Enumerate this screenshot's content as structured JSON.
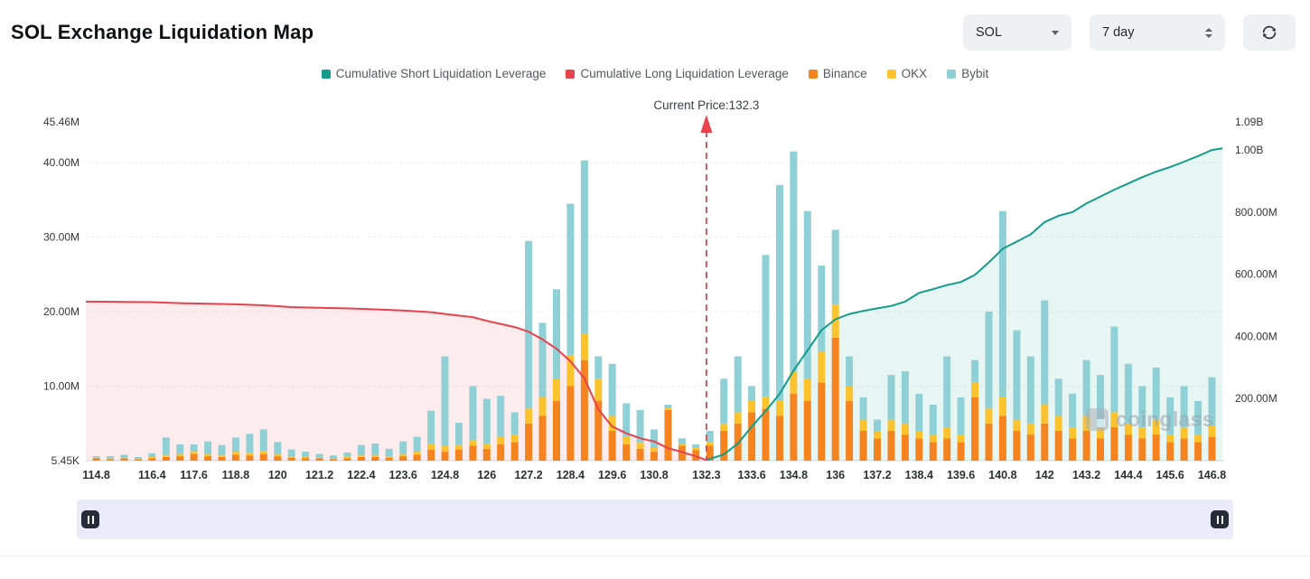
{
  "header": {
    "title": "SOL Exchange Liquidation Map"
  },
  "controls": {
    "symbol": "SOL",
    "timeframe": "7 day",
    "symbol_dropdown_icon": "chevron-down-icon",
    "timeframe_stepper_icon": "up-down-stepper-icon",
    "refresh_icon": "refresh-icon"
  },
  "legend": [
    {
      "label": "Cumulative Short Liquidation Leverage",
      "color": "#129c8c"
    },
    {
      "label": "Cumulative Long Liquidation Leverage",
      "color": "#e8424c"
    },
    {
      "label": "Binance",
      "color": "#f5831f"
    },
    {
      "label": "OKX",
      "color": "#fdc32e"
    },
    {
      "label": "Bybit",
      "color": "#8fd0d6"
    }
  ],
  "annotation": {
    "current_price_label": "Current Price:132.3",
    "current_price": 132.3
  },
  "watermark": "coinglass",
  "slider": {
    "left_handle_icon": "pause-icon",
    "right_handle_icon": "pause-icon"
  },
  "colors": {
    "short": "#129c8c",
    "long": "#e8424c",
    "binance": "#f5831f",
    "okx": "#fdc32e",
    "bybit": "#8fd0d6",
    "short_fill": "rgba(18,156,140,0.10)",
    "long_fill": "rgba(232,66,76,0.10)",
    "slider_track": "#e9ecf8",
    "slider_handle": "#262b38"
  },
  "chart_data": {
    "type": "bar",
    "title": "SOL Exchange Liquidation Map",
    "x_axis": "price",
    "x_range": [
      114.5,
      147.15
    ],
    "x_ticks": [
      "114.8",
      "116.4",
      "117.6",
      "118.8",
      "120",
      "121.2",
      "122.4",
      "123.6",
      "124.8",
      "126",
      "127.2",
      "128.4",
      "129.6",
      "130.8",
      "132.3",
      "133.6",
      "134.8",
      "136",
      "137.2",
      "138.4",
      "139.6",
      "140.8",
      "142",
      "143.2",
      "144.4",
      "145.6",
      "146.8"
    ],
    "left_axis": {
      "ticks": [
        "45.46M",
        "40.00M",
        "30.00M",
        "20.00M",
        "10.00M",
        "5.45K"
      ],
      "values_m": [
        45.46,
        40,
        30,
        20,
        10,
        0
      ],
      "max_m": 45.46
    },
    "right_axis": {
      "ticks": [
        "1.09B",
        "1.00B",
        "800.00M",
        "600.00M",
        "400.00M",
        "200.00M"
      ],
      "values_m": [
        1090,
        1000,
        800,
        600,
        400,
        200
      ],
      "max_m": 1090
    },
    "bars": {
      "unit": "millions_usd",
      "stacked": [
        "Binance",
        "OKX",
        "Bybit"
      ],
      "prices": [
        114.8,
        115.2,
        115.6,
        116,
        116.4,
        116.8,
        117.2,
        117.6,
        118,
        118.4,
        118.8,
        119.2,
        119.6,
        120,
        120.4,
        120.8,
        121.2,
        121.6,
        122,
        122.4,
        122.8,
        123.2,
        123.6,
        124,
        124.4,
        124.8,
        125.2,
        125.6,
        126,
        126.4,
        126.8,
        127.2,
        127.6,
        128,
        128.4,
        128.8,
        129.2,
        129.6,
        130,
        130.4,
        130.8,
        131.2,
        131.6,
        132,
        132.4,
        132.8,
        133.2,
        133.6,
        134,
        134.4,
        134.8,
        135.2,
        135.6,
        136,
        136.4,
        136.8,
        137.2,
        137.6,
        138,
        138.4,
        138.8,
        139.2,
        139.6,
        140,
        140.4,
        140.8,
        141.2,
        141.6,
        142,
        142.4,
        142.8,
        143.2,
        143.6,
        144,
        144.4,
        144.8,
        145.2,
        145.6,
        146,
        146.4,
        146.8
      ],
      "binance_m": [
        0.3,
        0.2,
        0.3,
        0.2,
        0.3,
        0.5,
        0.6,
        0.9,
        0.6,
        0.5,
        0.8,
        0.7,
        0.9,
        0.6,
        0.4,
        0.3,
        0.3,
        0.2,
        0.3,
        0.5,
        0.5,
        0.4,
        0.6,
        0.8,
        1.5,
        1.2,
        1.5,
        2,
        1.6,
        2.2,
        2.5,
        5,
        6,
        8,
        10,
        13.5,
        8,
        4,
        2.2,
        1.6,
        1.2,
        6.8,
        2,
        1.4,
        2,
        4,
        5,
        6.5,
        7,
        6,
        9,
        8,
        10.5,
        16.5,
        8,
        4,
        3,
        4,
        3.5,
        3,
        2.5,
        3,
        2.5,
        8.5,
        5,
        6,
        4,
        3.5,
        5,
        4,
        3,
        4,
        3,
        4.5,
        3.5,
        3,
        3.5,
        2.5,
        3,
        2.5,
        3.2
      ],
      "okx_m": [
        0.1,
        0.1,
        0.1,
        0.1,
        0.2,
        0.2,
        0.3,
        0.3,
        0.3,
        0.2,
        0.4,
        0.3,
        0.4,
        0.3,
        0.2,
        0.2,
        0.1,
        0.1,
        0.2,
        0.2,
        0.2,
        0.2,
        0.3,
        0.4,
        0.7,
        0.8,
        0.6,
        0.8,
        0.7,
        1,
        1,
        2,
        2.5,
        3,
        4.2,
        3.6,
        3,
        2,
        1,
        0.8,
        0.5,
        0.3,
        0.3,
        0.3,
        0.5,
        1,
        1.5,
        1.5,
        1.6,
        2,
        3,
        3,
        4.2,
        4.5,
        2,
        1.5,
        1,
        1.5,
        1.5,
        1,
        1,
        1.5,
        1,
        2,
        2,
        2.5,
        1.5,
        1.5,
        2.5,
        2,
        1.5,
        2,
        1.5,
        2,
        1.5,
        1.5,
        2,
        1,
        1.5,
        1,
        1.5
      ],
      "bybit_m": [
        0.2,
        0.3,
        0.4,
        0.2,
        0.5,
        2.4,
        1.3,
        1,
        1.7,
        1.4,
        1.9,
        2.6,
        2.9,
        1.6,
        0.9,
        0.7,
        0.5,
        0.4,
        0.6,
        1.4,
        1.6,
        1,
        1.7,
        2,
        4.5,
        12,
        3,
        7.2,
        6,
        5.5,
        3,
        22.5,
        10,
        12,
        20.3,
        23.2,
        3,
        7,
        4.5,
        4.4,
        2.5,
        0.4,
        0.7,
        0.5,
        1.5,
        6,
        7.5,
        2,
        19,
        29,
        29.5,
        22.5,
        11.5,
        10,
        4,
        3,
        1.5,
        6,
        7,
        5,
        4,
        9.5,
        5,
        3,
        13,
        25,
        12,
        9,
        14,
        5,
        4.5,
        7.5,
        7,
        11.5,
        8,
        5.5,
        7,
        5,
        5.5,
        4.5,
        6.5
      ]
    },
    "long_cumulative_m": {
      "name": "Cumulative Long Liquidation Leverage",
      "axis": "right",
      "x": [
        114.5,
        115.6,
        116.4,
        117.2,
        118,
        118.8,
        119.6,
        120.4,
        121.2,
        122,
        122.8,
        123.6,
        124.4,
        124.8,
        125.6,
        126,
        126.4,
        126.8,
        127.2,
        127.6,
        128,
        128.4,
        128.8,
        129.2,
        129.6,
        130,
        130.4,
        130.8,
        131.2,
        131.6,
        132,
        132.3
      ],
      "y_m": [
        512,
        511,
        510,
        507,
        505,
        503,
        500,
        494,
        492,
        490,
        487,
        483,
        478,
        472,
        462,
        450,
        440,
        430,
        415,
        390,
        360,
        320,
        265,
        165,
        110,
        88,
        72,
        62,
        40,
        28,
        14,
        2
      ]
    },
    "short_cumulative_m": {
      "name": "Cumulative Short Liquidation Leverage",
      "axis": "right",
      "x": [
        132.3,
        132.8,
        133.2,
        133.6,
        134,
        134.4,
        134.8,
        135.2,
        135.6,
        136,
        136.4,
        136.8,
        137.2,
        137.6,
        138,
        138.4,
        138.8,
        139.2,
        139.6,
        140,
        140.4,
        140.8,
        141.2,
        141.6,
        142,
        142.4,
        142.8,
        143.2,
        143.6,
        144,
        144.4,
        144.8,
        145.2,
        145.6,
        146,
        146.4,
        146.8,
        147.1
      ],
      "y_m": [
        2,
        20,
        55,
        110,
        160,
        215,
        290,
        355,
        420,
        455,
        472,
        482,
        490,
        498,
        512,
        540,
        552,
        565,
        575,
        598,
        638,
        682,
        705,
        728,
        768,
        788,
        800,
        828,
        850,
        872,
        892,
        912,
        930,
        945,
        962,
        980,
        1000,
        1005
      ]
    }
  }
}
